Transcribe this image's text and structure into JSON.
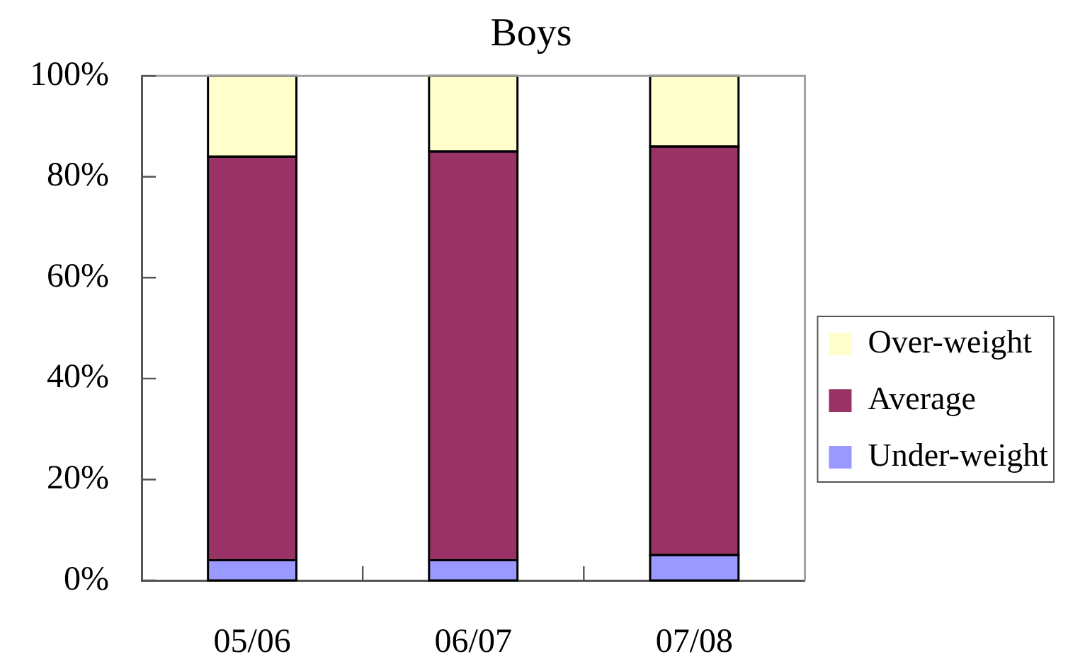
{
  "chart_data": {
    "type": "bar",
    "title": "Boys",
    "categories": [
      "05/06",
      "06/07",
      "07/08"
    ],
    "series": [
      {
        "name": "Under-weight",
        "color": "#9999ff",
        "values": [
          4,
          4,
          5
        ]
      },
      {
        "name": "Average",
        "color": "#993366",
        "values": [
          80,
          81,
          81
        ]
      },
      {
        "name": "Over-weight",
        "color": "#ffffcc",
        "values": [
          16,
          15,
          14
        ]
      }
    ],
    "stacked": true,
    "ylim": [
      0,
      100
    ],
    "yticks": [
      {
        "value": 0,
        "label": "0%"
      },
      {
        "value": 20,
        "label": "20%"
      },
      {
        "value": 40,
        "label": "40%"
      },
      {
        "value": 60,
        "label": "60%"
      },
      {
        "value": 80,
        "label": "80%"
      },
      {
        "value": 100,
        "label": "100%"
      }
    ],
    "legend": "right"
  }
}
